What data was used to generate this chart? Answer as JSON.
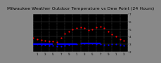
{
  "title": "Milwaukee Weather Outdoor Temperature vs Dew Point (24 Hours)",
  "bg_color": "#888888",
  "plot_bg_color": "#000000",
  "grid_color": "#555555",
  "temp_color": "#ff0000",
  "dew_color": "#0000ff",
  "black_color": "#000000",
  "ylim": [
    20,
    70
  ],
  "xlim": [
    0,
    24
  ],
  "hours": [
    0,
    1,
    2,
    3,
    4,
    5,
    6,
    7,
    8,
    9,
    10,
    11,
    12,
    13,
    14,
    15,
    16,
    17,
    18,
    19,
    20,
    21,
    22,
    23
  ],
  "temp": [
    38,
    37,
    36,
    35,
    34,
    34,
    33,
    38,
    44,
    47,
    50,
    51,
    52,
    51,
    49,
    50,
    52,
    53,
    51,
    47,
    43,
    40,
    37,
    35
  ],
  "dew": [
    30,
    30,
    29,
    29,
    28,
    28,
    27,
    27,
    28,
    29,
    30,
    30,
    31,
    31,
    31,
    31,
    30,
    30,
    29,
    29,
    30,
    30,
    29,
    28
  ],
  "ytick_labels": [
    "7",
    "6",
    "5",
    "4",
    "3",
    "2"
  ],
  "ytick_vals": [
    70,
    60,
    50,
    40,
    30,
    20
  ],
  "vgrid_x": [
    0,
    2,
    4,
    6,
    8,
    10,
    12,
    14,
    16,
    18,
    20,
    22,
    24
  ],
  "hgrid_y": [
    20,
    30,
    40,
    50,
    60,
    70
  ],
  "title_fontsize": 4.5,
  "tick_fontsize": 3.0,
  "dot_size": 2.5,
  "line_segments": [
    {
      "x0": 0,
      "x1": 5,
      "y": 30
    },
    {
      "x0": 6,
      "x1": 11,
      "y": 30
    },
    {
      "x0": 12,
      "x1": 17,
      "y": 31
    }
  ],
  "xtick_vals": [
    1,
    3,
    5,
    7,
    9,
    11,
    13,
    15,
    17,
    19,
    21,
    23
  ],
  "xtick_labels": [
    "1",
    "3",
    "5",
    "7",
    "9",
    "1",
    "3",
    "5",
    "7",
    "9",
    "1",
    "3"
  ]
}
